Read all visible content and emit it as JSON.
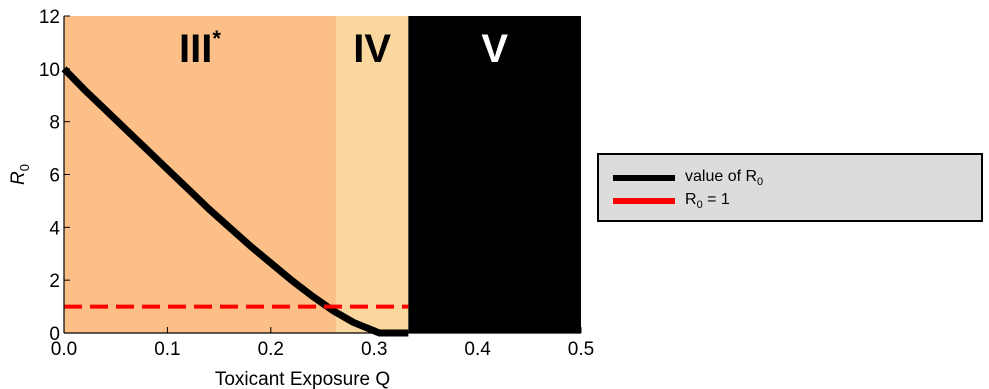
{
  "chart_data": {
    "type": "line",
    "xlabel": "Toxicant Exposure Q",
    "ylabel": "R",
    "ylabel_sub": "0",
    "xlim": [
      0,
      0.5
    ],
    "ylim": [
      0,
      12
    ],
    "x_ticks": [
      "0.0",
      "0.1",
      "0.2",
      "0.3",
      "0.4",
      "0.5"
    ],
    "y_ticks": [
      "0",
      "2",
      "4",
      "6",
      "8",
      "10",
      "12"
    ],
    "grid": false,
    "regions": [
      {
        "label": "III",
        "label_sup": "*",
        "x_start": 0.0,
        "x_end": 0.263,
        "fill": "#fbbf87",
        "text_color": "#000000"
      },
      {
        "label": "IV",
        "label_sup": "",
        "x_start": 0.263,
        "x_end": 0.333,
        "fill": "#fad79e",
        "text_color": "#000000"
      },
      {
        "label": "V",
        "label_sup": "",
        "x_start": 0.333,
        "x_end": 0.5,
        "fill": "#000000",
        "text_color": "#ffffff"
      }
    ],
    "series": [
      {
        "name": "value of R",
        "name_sub": "0",
        "color": "#000000",
        "style": "solid",
        "x": [
          0.0,
          0.02,
          0.04,
          0.06,
          0.08,
          0.1,
          0.12,
          0.14,
          0.16,
          0.18,
          0.2,
          0.22,
          0.24,
          0.26,
          0.28,
          0.3,
          0.305,
          0.333
        ],
        "y": [
          10.0,
          9.2,
          8.45,
          7.7,
          6.95,
          6.2,
          5.45,
          4.7,
          4.0,
          3.3,
          2.65,
          2.0,
          1.4,
          0.85,
          0.4,
          0.08,
          0.0,
          0.0
        ]
      },
      {
        "name": "R",
        "name_sub": "0",
        "name_suffix": " = 1",
        "color": "#ff0000",
        "style": "dashed",
        "x": [
          0.0,
          0.333
        ],
        "y": [
          1.0,
          1.0
        ]
      }
    ],
    "legend_position": "right"
  }
}
